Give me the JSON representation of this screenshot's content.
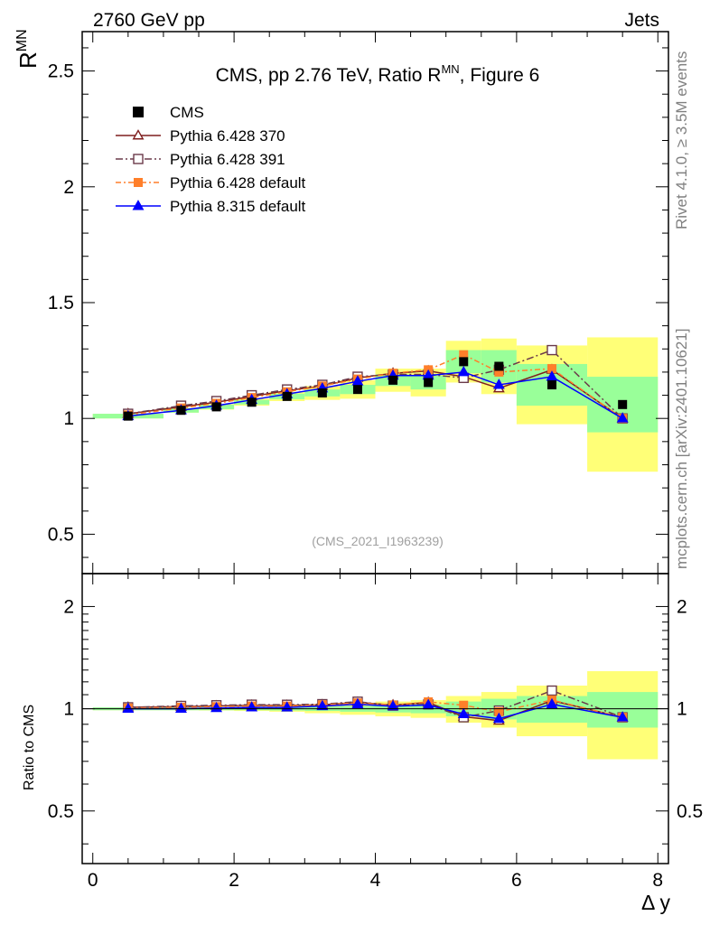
{
  "header": {
    "left": "2760 GeV pp",
    "right": "Jets",
    "rivet": "Rivet 4.1.0, ≥ 3.5M events",
    "mcplots": "mcplots.cern.ch [arXiv:2401.10621]"
  },
  "chart_data": {
    "type": "line",
    "title": "CMS, pp 2.76 TeV, Ratio R",
    "title_sup": "MN",
    "title_suffix": ", Figure 6",
    "analysis_label": "(CMS_2021_I1963239)",
    "ylabel": "R",
    "ylabel_sup": "MN",
    "xlabel": "Δ y",
    "ratio_ylabel": "Ratio to CMS",
    "xlim": [
      -0.15,
      8.15
    ],
    "ylim": [
      0.33,
      2.67
    ],
    "ratio_ylim": [
      0.35,
      2.5
    ],
    "xticks": [
      "0",
      "2",
      "4",
      "6",
      "8"
    ],
    "yticks": [
      "0.5",
      "1",
      "1.5",
      "2",
      "2.5"
    ],
    "ratio_yticks": [
      "0.5",
      "1",
      "2"
    ],
    "data": {
      "name": "CMS",
      "x": [
        0.5,
        1.25,
        1.75,
        2.25,
        2.75,
        3.25,
        3.75,
        4.25,
        4.75,
        5.25,
        5.75,
        6.5,
        7.5
      ],
      "y": [
        1.01,
        1.035,
        1.05,
        1.07,
        1.095,
        1.11,
        1.125,
        1.165,
        1.155,
        1.245,
        1.225,
        1.145,
        1.06
      ],
      "bin_edges": [
        0,
        1,
        1.5,
        2,
        2.5,
        3,
        3.5,
        4,
        4.5,
        5,
        5.5,
        6,
        7,
        8
      ],
      "band_inner": [
        0.01,
        0.01,
        0.01,
        0.01,
        0.012,
        0.015,
        0.02,
        0.025,
        0.03,
        0.05,
        0.07,
        0.09,
        0.12
      ],
      "band_outer": [
        0.01,
        0.01,
        0.012,
        0.015,
        0.02,
        0.03,
        0.04,
        0.05,
        0.06,
        0.09,
        0.12,
        0.17,
        0.29
      ]
    },
    "series": [
      {
        "name": "Pythia 6.428 370",
        "color": "#7f1f1f",
        "marker": "triangle-open",
        "dash": "",
        "x": [
          0.5,
          1.25,
          1.75,
          2.25,
          2.75,
          3.25,
          3.75,
          4.25,
          4.75,
          5.25,
          5.75,
          6.5,
          7.5
        ],
        "y": [
          1.02,
          1.05,
          1.07,
          1.095,
          1.12,
          1.14,
          1.175,
          1.195,
          1.205,
          1.18,
          1.13,
          1.21,
          1.0
        ]
      },
      {
        "name": "Pythia 6.428 391",
        "color": "#6b3a4a",
        "marker": "square-open",
        "dash": "8,3,2,3",
        "x": [
          0.5,
          1.25,
          1.75,
          2.25,
          2.75,
          3.25,
          3.75,
          4.25,
          4.75,
          5.25,
          5.75,
          6.5,
          7.5
        ],
        "y": [
          1.02,
          1.055,
          1.075,
          1.1,
          1.125,
          1.145,
          1.18,
          1.19,
          1.19,
          1.175,
          1.21,
          1.295,
          1.0
        ]
      },
      {
        "name": "Pythia 6.428 default",
        "color": "#ff7f2a",
        "marker": "square",
        "dash": "6,3,2,3",
        "x": [
          0.5,
          1.25,
          1.75,
          2.25,
          2.75,
          3.25,
          3.75,
          4.25,
          4.75,
          5.25,
          5.75,
          6.5,
          7.5
        ],
        "y": [
          1.015,
          1.045,
          1.065,
          1.09,
          1.115,
          1.14,
          1.17,
          1.195,
          1.21,
          1.275,
          1.2,
          1.215,
          1.0
        ]
      },
      {
        "name": "Pythia 8.315 default",
        "color": "#0000ff",
        "marker": "triangle",
        "dash": "",
        "x": [
          0.5,
          1.25,
          1.75,
          2.25,
          2.75,
          3.25,
          3.75,
          4.25,
          4.75,
          5.25,
          5.75,
          6.5,
          7.5
        ],
        "y": [
          1.01,
          1.035,
          1.055,
          1.08,
          1.105,
          1.13,
          1.16,
          1.185,
          1.185,
          1.2,
          1.145,
          1.18,
          1.0
        ]
      }
    ]
  }
}
